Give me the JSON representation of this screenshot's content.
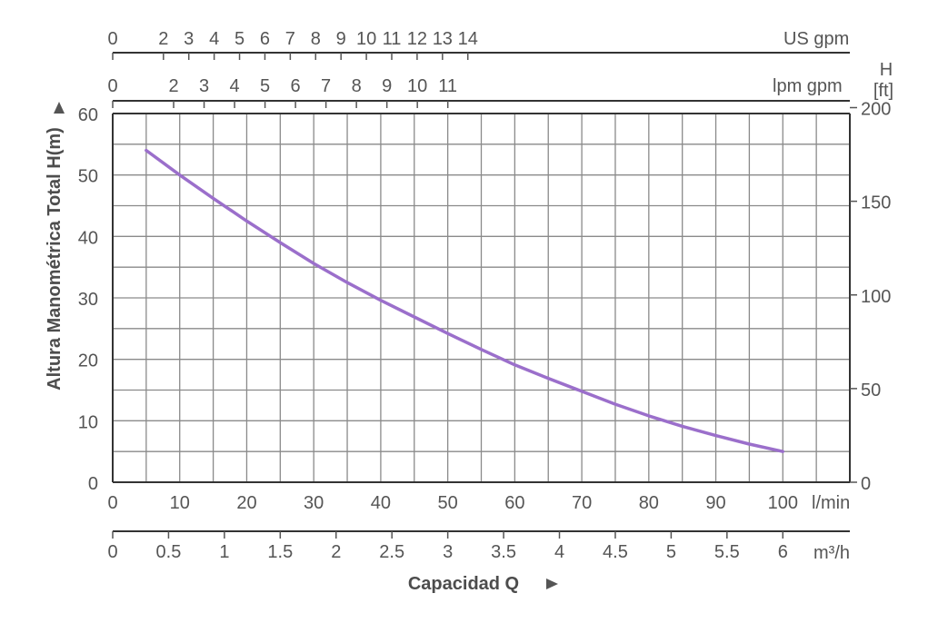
{
  "chart_data": {
    "type": "line",
    "title": "",
    "xlabel": "Capacidad Q",
    "ylabel": "Altura Manométrica Total H(m)",
    "x_unit_primary": "l/min",
    "x_unit_m3h": "m³/h",
    "top_unit_lpm": "lpm gpm",
    "top_unit_usgpm": "US gpm",
    "right_unit": "H [ft]",
    "xlim": [
      0,
      110
    ],
    "ylim": [
      0,
      60
    ],
    "grid": true,
    "x_ticks": [
      "0",
      "10",
      "20",
      "30",
      "40",
      "50",
      "60",
      "70",
      "80",
      "90",
      "100"
    ],
    "y_ticks": [
      "0",
      "10",
      "20",
      "30",
      "40",
      "50",
      "60"
    ],
    "y_ft_ticks": [
      "0",
      "50",
      "100",
      "150",
      "200"
    ],
    "m3h_ticks": [
      "0",
      "0.5",
      "1",
      "1.5",
      "2",
      "2.5",
      "3",
      "3.5",
      "4",
      "4.5",
      "5",
      "5.5",
      "6"
    ],
    "imp_gpm_ticks": [
      "0",
      "2",
      "3",
      "4",
      "5",
      "6",
      "7",
      "8",
      "9",
      "10",
      "11"
    ],
    "us_gpm_ticks": [
      "0",
      "2",
      "3",
      "4",
      "5",
      "6",
      "7",
      "8",
      "9",
      "10",
      "11",
      "12",
      "13",
      "14"
    ],
    "series": [
      {
        "color": "#9b6fcb",
        "x": [
          5,
          10,
          15,
          20,
          25,
          30,
          35,
          40,
          45,
          50,
          55,
          60,
          65,
          70,
          75,
          80,
          85,
          90,
          95,
          100
        ],
        "y": [
          54,
          50,
          46.2,
          42.5,
          39,
          35.6,
          32.5,
          29.6,
          26.9,
          24.2,
          21.6,
          19.1,
          16.9,
          14.8,
          12.7,
          10.8,
          9.1,
          7.6,
          6.2,
          5
        ]
      }
    ]
  }
}
